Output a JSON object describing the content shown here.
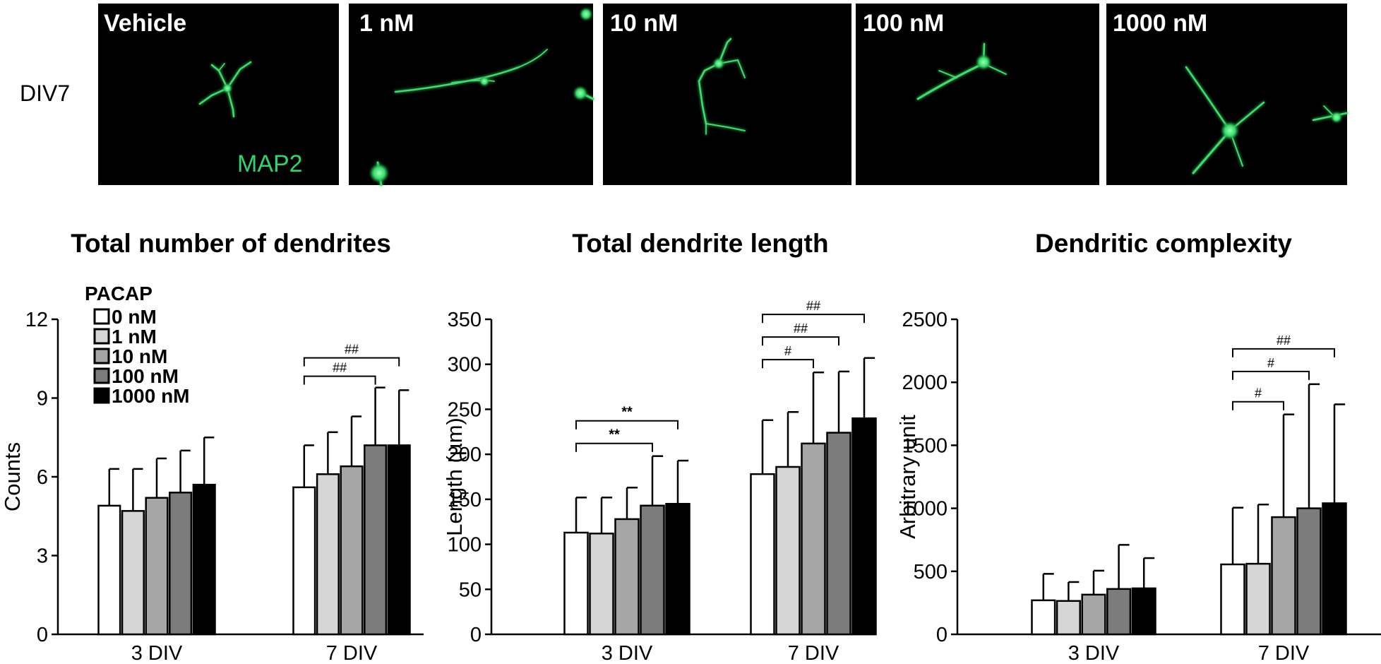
{
  "images": {
    "row_label": "DIV7",
    "marker_label": "MAP2",
    "panels": [
      {
        "label": "Vehicle"
      },
      {
        "label": "1 nM"
      },
      {
        "label": "10 nM"
      },
      {
        "label": "100 nM"
      },
      {
        "label": "1000 nM"
      }
    ]
  },
  "legend": {
    "title": "PACAP",
    "entries": [
      "0 nM",
      "1 nM",
      "10 nM",
      "100 nM",
      "1000 nM"
    ],
    "colors": [
      "#ffffff",
      "#d6d6d6",
      "#a6a6a6",
      "#7c7c7c",
      "#000000"
    ]
  },
  "chart_data": [
    {
      "type": "bar",
      "title": "Total number of dendrites",
      "ylabel": "Counts",
      "xlabel": "",
      "ylim": [
        0,
        12
      ],
      "yticks": [
        "0",
        "3",
        "6",
        "9",
        "12"
      ],
      "categories": [
        "3 DIV",
        "7 DIV"
      ],
      "series": [
        {
          "name": "0 nM",
          "values": [
            4.9,
            5.6
          ],
          "errors": [
            1.4,
            1.6
          ]
        },
        {
          "name": "1 nM",
          "values": [
            4.7,
            6.1
          ],
          "errors": [
            1.6,
            1.6
          ]
        },
        {
          "name": "10 nM",
          "values": [
            5.2,
            6.4
          ],
          "errors": [
            1.5,
            1.9
          ]
        },
        {
          "name": "100 nM",
          "values": [
            5.4,
            7.2
          ],
          "errors": [
            1.6,
            2.2
          ]
        },
        {
          "name": "1000 nM",
          "values": [
            5.7,
            7.2
          ],
          "errors": [
            1.8,
            2.1
          ]
        }
      ],
      "significance": [
        {
          "category": "7 DIV",
          "from": 0,
          "to": 3,
          "label": "##"
        },
        {
          "category": "7 DIV",
          "from": 0,
          "to": 4,
          "label": "##"
        }
      ]
    },
    {
      "type": "bar",
      "title": "Total dendrite length",
      "ylabel": "Length (µm)",
      "xlabel": "",
      "ylim": [
        0,
        350
      ],
      "yticks": [
        "0",
        "50",
        "100",
        "150",
        "200",
        "250",
        "300",
        "350"
      ],
      "categories": [
        "3 DIV",
        "7 DIV"
      ],
      "series": [
        {
          "name": "0 nM",
          "values": [
            113,
            178
          ],
          "errors": [
            39,
            60
          ]
        },
        {
          "name": "1 nM",
          "values": [
            112,
            186
          ],
          "errors": [
            40,
            61
          ]
        },
        {
          "name": "10 nM",
          "values": [
            128,
            212
          ],
          "errors": [
            35,
            79
          ]
        },
        {
          "name": "100 nM",
          "values": [
            143,
            224
          ],
          "errors": [
            55,
            68
          ]
        },
        {
          "name": "1000 nM",
          "values": [
            145,
            240
          ],
          "errors": [
            48,
            67
          ]
        }
      ],
      "significance": [
        {
          "category": "3 DIV",
          "from": 0,
          "to": 3,
          "label": "**"
        },
        {
          "category": "3 DIV",
          "from": 0,
          "to": 4,
          "label": "**"
        },
        {
          "category": "7 DIV",
          "from": 0,
          "to": 2,
          "label": "#"
        },
        {
          "category": "7 DIV",
          "from": 0,
          "to": 3,
          "label": "##"
        },
        {
          "category": "7 DIV",
          "from": 0,
          "to": 4,
          "label": "##"
        }
      ]
    },
    {
      "type": "bar",
      "title": "Dendritic complexity",
      "ylabel": "Arbitrary unit",
      "xlabel": "",
      "ylim": [
        0,
        2500
      ],
      "yticks": [
        "0",
        "500",
        "1000",
        "1500",
        "2000",
        "2500"
      ],
      "categories": [
        "3 DIV",
        "7 DIV"
      ],
      "series": [
        {
          "name": "0 nM",
          "values": [
            270,
            555
          ],
          "errors": [
            210,
            450
          ]
        },
        {
          "name": "1 nM",
          "values": [
            265,
            560
          ],
          "errors": [
            150,
            470
          ]
        },
        {
          "name": "10 nM",
          "values": [
            315,
            930
          ],
          "errors": [
            190,
            815
          ]
        },
        {
          "name": "100 nM",
          "values": [
            360,
            1000
          ],
          "errors": [
            350,
            985
          ]
        },
        {
          "name": "1000 nM",
          "values": [
            365,
            1040
          ],
          "errors": [
            240,
            785
          ]
        }
      ],
      "significance": [
        {
          "category": "7 DIV",
          "from": 0,
          "to": 2,
          "label": "#"
        },
        {
          "category": "7 DIV",
          "from": 0,
          "to": 3,
          "label": "#"
        },
        {
          "category": "7 DIV",
          "from": 0,
          "to": 4,
          "label": "##"
        }
      ]
    }
  ]
}
